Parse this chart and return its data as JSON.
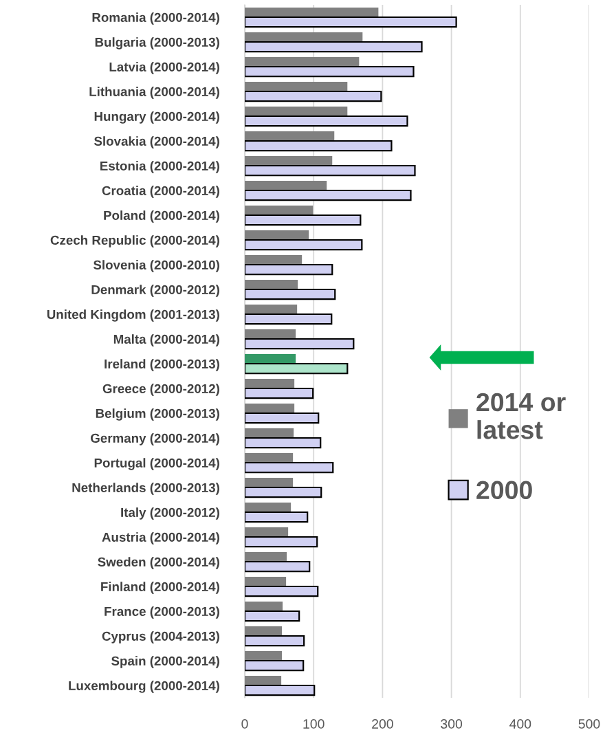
{
  "chart_data": {
    "type": "bar",
    "orientation": "horizontal",
    "categories": [
      "Romania (2000-2014)",
      "Bulgaria (2000-2013)",
      "Latvia (2000-2014)",
      "Lithuania (2000-2014)",
      "Hungary (2000-2014)",
      "Slovakia (2000-2014)",
      "Estonia (2000-2014)",
      "Croatia (2000-2014)",
      "Poland (2000-2014)",
      "Czech Republic (2000-2014)",
      "Slovenia (2000-2010)",
      "Denmark (2000-2012)",
      "United Kingdom (2001-2013)",
      "Malta (2000-2014)",
      "Ireland (2000-2013)",
      "Greece (2000-2012)",
      "Belgium (2000-2013)",
      "Germany (2000-2014)",
      "Portugal (2000-2014)",
      "Netherlands (2000-2013)",
      "Italy (2000-2012)",
      "Austria (2000-2014)",
      "Sweden (2000-2014)",
      "Finland (2000-2014)",
      "France (2000-2013)",
      "Cyprus (2004-2013)",
      "Spain (2000-2014)",
      "Luxembourg (2000-2014)"
    ],
    "series": [
      {
        "name": "2014 or latest",
        "color": "#808080",
        "colors": [
          "#808080",
          "#808080",
          "#808080",
          "#808080",
          "#808080",
          "#808080",
          "#808080",
          "#808080",
          "#808080",
          "#808080",
          "#808080",
          "#808080",
          "#808080",
          "#808080",
          "#339966",
          "#808080",
          "#808080",
          "#808080",
          "#808080",
          "#808080",
          "#808080",
          "#808080",
          "#808080",
          "#808080",
          "#808080",
          "#808080",
          "#808080",
          "#808080"
        ],
        "values": [
          194,
          171,
          166,
          149,
          149,
          130,
          127,
          119,
          99,
          93,
          83,
          77,
          76,
          74,
          74,
          72,
          72,
          71,
          70,
          70,
          67,
          63,
          61,
          60,
          55,
          54,
          54,
          53
        ]
      },
      {
        "name": "2000",
        "color": "#d0d0f2",
        "colors": [
          "#d0d0f2",
          "#d0d0f2",
          "#d0d0f2",
          "#d0d0f2",
          "#d0d0f2",
          "#d0d0f2",
          "#d0d0f2",
          "#d0d0f2",
          "#d0d0f2",
          "#d0d0f2",
          "#d0d0f2",
          "#d0d0f2",
          "#d0d0f2",
          "#d0d0f2",
          "#ade5cb",
          "#d0d0f2",
          "#d0d0f2",
          "#d0d0f2",
          "#d0d0f2",
          "#d0d0f2",
          "#d0d0f2",
          "#d0d0f2",
          "#d0d0f2",
          "#d0d0f2",
          "#d0d0f2",
          "#d0d0f2",
          "#d0d0f2",
          "#d0d0f2"
        ],
        "values": [
          307,
          257,
          245,
          198,
          236,
          213,
          247,
          241,
          168,
          170,
          127,
          131,
          126,
          158,
          149,
          99,
          107,
          110,
          128,
          111,
          91,
          105,
          94,
          106,
          79,
          86,
          85,
          101
        ]
      }
    ],
    "xlim": [
      0,
      500
    ],
    "xticks": [
      0,
      100,
      200,
      300,
      400,
      500
    ],
    "grid": "x",
    "legend": "right"
  }
}
